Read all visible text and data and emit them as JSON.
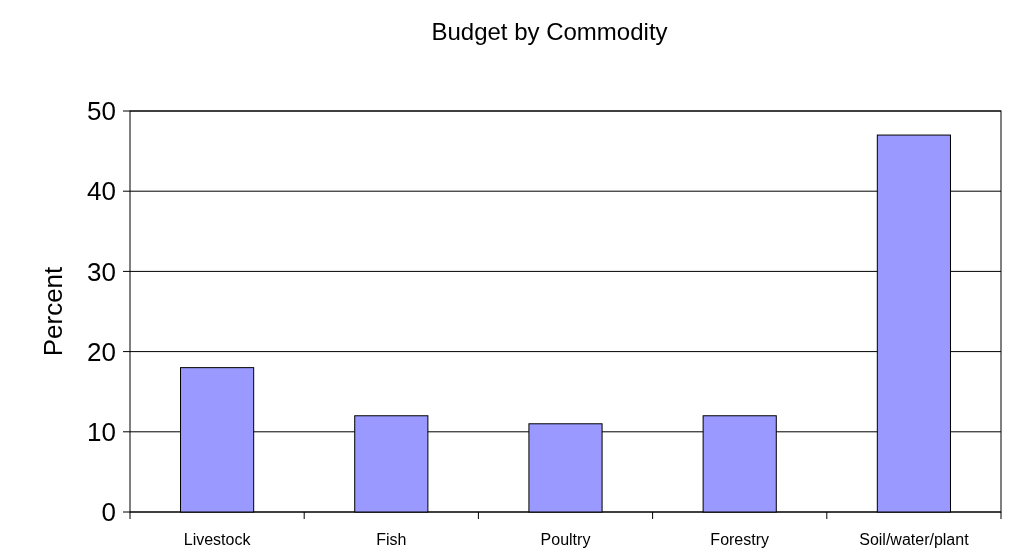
{
  "chart_data": {
    "type": "bar",
    "title": "Budget by Commodity",
    "ylabel": "Percent",
    "categories": [
      "Livestock",
      "Fish",
      "Poultry",
      "Forestry",
      "Soil/water/plant"
    ],
    "values": [
      18,
      12,
      11,
      12,
      47
    ],
    "color": "#9999ff",
    "ylim": [
      0,
      50
    ],
    "yticks": [
      0,
      10,
      20,
      30,
      40,
      50
    ],
    "grid": "y"
  }
}
